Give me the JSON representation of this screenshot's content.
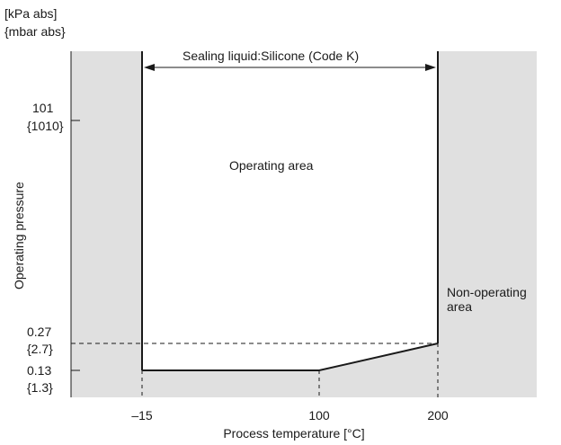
{
  "units": {
    "kpa": "[kPa  abs]",
    "mbar": "{mbar  abs}"
  },
  "axes": {
    "y_label": "Operating  pressure",
    "x_label": "Process temperature [°C]"
  },
  "y_ticks": [
    {
      "value": "101",
      "sub": "{1010}"
    },
    {
      "value": "0.27",
      "sub": "{2.7}"
    },
    {
      "value": "0.13",
      "sub": "{1.3}"
    }
  ],
  "x_ticks": [
    "–15",
    "100",
    "200"
  ],
  "annotations": {
    "sealing": "Sealing liquid:Silicone (Code K)",
    "operating": "Operating area",
    "non_operating_1": "Non-operating",
    "non_operating_2": "area"
  },
  "colors": {
    "non_operating_fill": "#e0e0e0",
    "line": "#1a1a1a"
  }
}
